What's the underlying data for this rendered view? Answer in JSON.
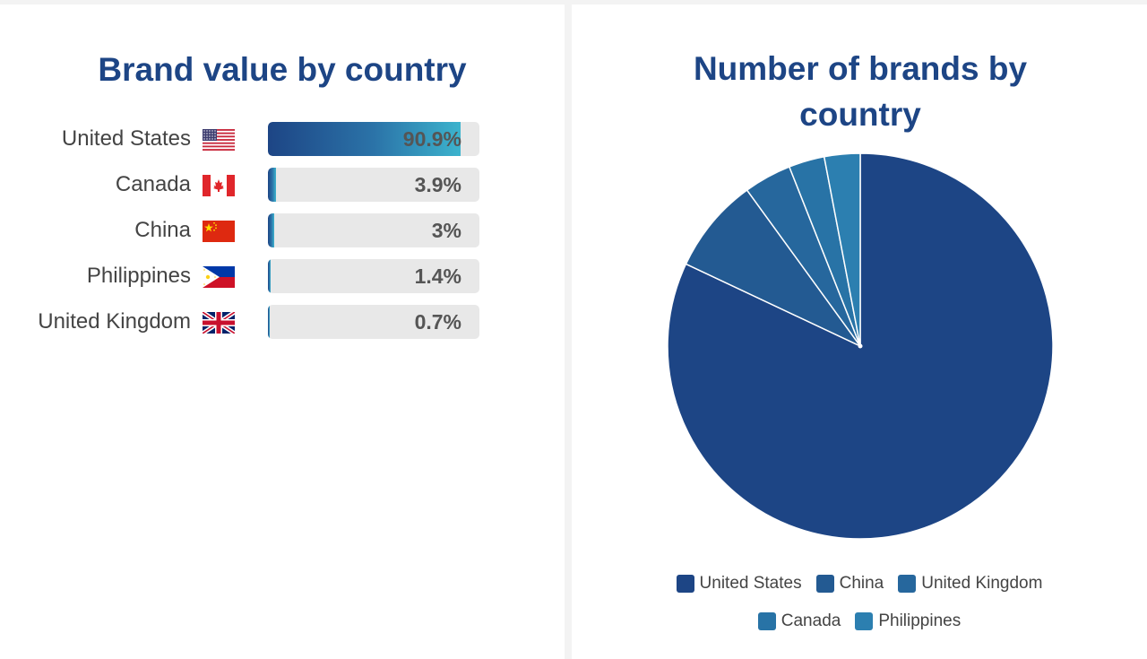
{
  "chart_data": [
    {
      "type": "bar",
      "title": "Brand value by country",
      "categories": [
        "United States",
        "Canada",
        "China",
        "Philippines",
        "United Kingdom"
      ],
      "values": [
        90.9,
        3.9,
        3,
        1.4,
        0.7
      ],
      "value_labels": [
        "90.9%",
        "3.9%",
        "3%",
        "1.4%",
        "0.7%"
      ],
      "flags": [
        "us-flag-icon",
        "canada-flag-icon",
        "china-flag-icon",
        "philippines-flag-icon",
        "uk-flag-icon"
      ],
      "ylim": [
        0,
        100
      ],
      "orientation": "horizontal",
      "colors": {
        "gradient_start": "#1d4585",
        "gradient_end": "#3cb3cd",
        "track": "#e8e8e8"
      }
    },
    {
      "type": "pie",
      "title": "Number of brands by country",
      "categories": [
        "United States",
        "China",
        "United Kingdom",
        "Canada",
        "Philippines"
      ],
      "values": [
        82,
        8,
        4,
        3,
        3
      ],
      "colors": [
        "#1d4585",
        "#235a92",
        "#26679d",
        "#2873a6",
        "#2c7fb0"
      ],
      "legend": "bottom"
    }
  ]
}
